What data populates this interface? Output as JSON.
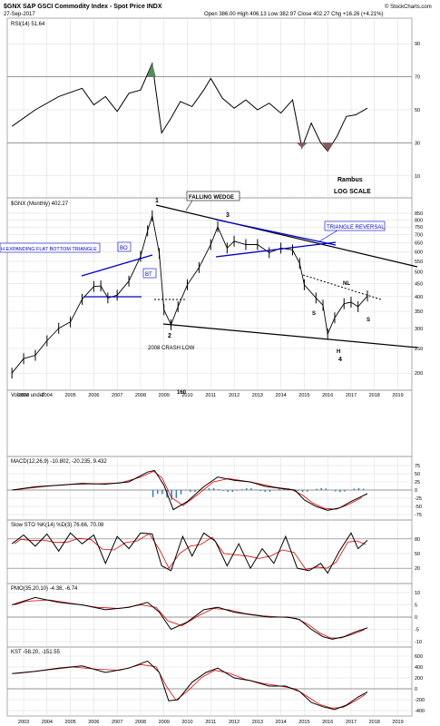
{
  "header": {
    "symbol_title": "$GNX S&P GSCI Commodity Index - Spot Price INDX",
    "date": "27-Sep-2017",
    "quote": "Open 386.00  High 406.13  Low 382.97  Close 402.27  Chg +16.26 (+4.21%)",
    "credit": "© StockCharts.com",
    "byline": "Rambus",
    "scale_note": "LOG SCALE"
  },
  "colors": {
    "price_bar": "#000000",
    "blue_line": "#0000cc",
    "rsi_fill": "#5a8a5a",
    "rsi_low_fill": "#8b5a5a",
    "signal_red": "#e00000",
    "hist_blue": "#2a7fbf",
    "grid": "#d8d8d8"
  },
  "chart_data": [
    {
      "name": "RSI",
      "type": "line",
      "legend": "RSI(14) 51.64",
      "ylim": [
        0,
        100
      ],
      "yticks": [
        10,
        30,
        50,
        70,
        90
      ],
      "x": [
        2002.5,
        2003.5,
        2004.5,
        2005.5,
        2006.0,
        2006.5,
        2007.0,
        2007.5,
        2008.0,
        2008.5,
        2008.9,
        2009.3,
        2009.7,
        2010.2,
        2010.7,
        2011.0,
        2011.5,
        2012.0,
        2012.5,
        2013.0,
        2013.5,
        2014.0,
        2014.5,
        2014.9,
        2015.3,
        2015.7,
        2016.0,
        2016.4,
        2016.8,
        2017.2,
        2017.7
      ],
      "values": [
        40,
        50,
        58,
        63,
        53,
        58,
        49,
        60,
        62,
        78,
        36,
        45,
        55,
        52,
        62,
        69,
        57,
        51,
        56,
        50,
        54,
        48,
        56,
        27,
        42,
        30,
        25,
        34,
        46,
        47,
        51
      ]
    },
    {
      "name": "Price",
      "type": "line",
      "legend": "$GNX (Monthly) 402.27",
      "scale": "log",
      "ylim": [
        180,
        900
      ],
      "yticks": [
        200,
        250,
        300,
        350,
        400,
        450,
        500,
        550,
        600,
        650,
        700,
        750,
        800,
        850
      ],
      "x": [
        2002.5,
        2003.0,
        2003.5,
        2004.0,
        2004.5,
        2005.0,
        2005.5,
        2006.0,
        2006.3,
        2006.6,
        2007.0,
        2007.5,
        2008.0,
        2008.3,
        2008.5,
        2008.8,
        2009.0,
        2009.3,
        2009.6,
        2010.0,
        2010.5,
        2011.0,
        2011.3,
        2011.7,
        2012.0,
        2012.5,
        2013.0,
        2013.5,
        2014.0,
        2014.5,
        2014.8,
        2015.0,
        2015.5,
        2015.8,
        2016.0,
        2016.3,
        2016.7,
        2017.0,
        2017.3,
        2017.7
      ],
      "values": [
        200,
        228,
        235,
        268,
        300,
        318,
        390,
        438,
        440,
        395,
        405,
        460,
        575,
        725,
        830,
        590,
        355,
        310,
        365,
        445,
        520,
        640,
        752,
        620,
        660,
        640,
        640,
        595,
        620,
        610,
        540,
        445,
        395,
        370,
        285,
        330,
        375,
        380,
        365,
        402
      ]
    },
    {
      "name": "MACD",
      "type": "line",
      "legend": "MACD(12,26,9) -10.802, -20.235, 9.432",
      "ylim": [
        -75,
        75
      ],
      "yticks": [
        -75,
        -50,
        -25,
        0,
        25,
        50,
        75
      ],
      "x": [
        2002.5,
        2003.5,
        2004.5,
        2005.5,
        2006.5,
        2007.5,
        2008.3,
        2008.6,
        2009.0,
        2009.4,
        2010.0,
        2010.7,
        2011.3,
        2012.0,
        2012.7,
        2013.3,
        2014.0,
        2014.6,
        2015.0,
        2015.5,
        2016.0,
        2016.5,
        2017.0,
        2017.7
      ],
      "values": [
        0,
        10,
        15,
        20,
        18,
        25,
        55,
        60,
        15,
        -60,
        -35,
        10,
        40,
        30,
        25,
        12,
        5,
        0,
        -30,
        -50,
        -62,
        -55,
        -35,
        -11
      ]
    },
    {
      "name": "Slow STO",
      "type": "line",
      "legend": "Slow STO %K(14) %D(3) 76.66, 70.08",
      "ylim": [
        0,
        100
      ],
      "yticks": [
        20,
        50,
        80
      ],
      "x": [
        2002.5,
        2003.0,
        2003.5,
        2004.0,
        2004.5,
        2005.0,
        2005.5,
        2006.0,
        2006.5,
        2007.0,
        2007.5,
        2008.0,
        2008.5,
        2008.9,
        2009.3,
        2009.8,
        2010.2,
        2010.7,
        2011.2,
        2011.7,
        2012.2,
        2012.7,
        2013.2,
        2013.7,
        2014.2,
        2014.7,
        2015.2,
        2015.7,
        2016.0,
        2016.5,
        2017.0,
        2017.3,
        2017.7
      ],
      "values": [
        70,
        88,
        65,
        90,
        55,
        92,
        70,
        88,
        30,
        85,
        60,
        92,
        90,
        25,
        15,
        85,
        45,
        92,
        75,
        25,
        70,
        20,
        60,
        30,
        85,
        20,
        15,
        30,
        10,
        55,
        92,
        60,
        77
      ]
    },
    {
      "name": "PMO",
      "type": "line",
      "legend": "PMO(35,20,10) -4.38, -6.74",
      "ylim": [
        -10,
        10
      ],
      "yticks": [
        -10,
        -5,
        0,
        5,
        10
      ],
      "x": [
        2002.5,
        2003.5,
        2004.5,
        2005.5,
        2006.5,
        2007.5,
        2008.3,
        2008.8,
        2009.3,
        2010.0,
        2010.7,
        2011.3,
        2012.0,
        2012.7,
        2013.5,
        2014.3,
        2014.8,
        2015.3,
        2015.8,
        2016.2,
        2016.7,
        2017.2,
        2017.7
      ],
      "values": [
        5,
        8,
        6,
        5,
        3,
        4,
        6,
        2,
        -5,
        -2,
        3,
        4,
        2,
        1,
        0,
        0,
        -1,
        -5,
        -8,
        -9,
        -8,
        -6,
        -4.4
      ]
    },
    {
      "name": "KST",
      "type": "line",
      "legend": "KST -58.20, -151.55",
      "ylim": [
        -400,
        600
      ],
      "yticks": [
        -400,
        -200,
        0,
        200,
        400,
        600
      ],
      "x": [
        2002.5,
        2003.5,
        2004.5,
        2005.5,
        2006.5,
        2007.5,
        2008.3,
        2008.8,
        2009.2,
        2009.6,
        2010.2,
        2010.8,
        2011.3,
        2012.0,
        2012.7,
        2013.5,
        2014.2,
        2014.8,
        2015.3,
        2015.8,
        2016.3,
        2016.8,
        2017.3,
        2017.7
      ],
      "values": [
        280,
        320,
        380,
        420,
        300,
        380,
        510,
        300,
        -220,
        -200,
        120,
        300,
        380,
        200,
        150,
        50,
        50,
        -50,
        -250,
        -330,
        -380,
        -300,
        -150,
        -58
      ]
    }
  ],
  "xaxis_years": [
    "2003",
    "2004",
    "2005",
    "2006",
    "2007",
    "2008",
    "2009",
    "2010",
    "2011",
    "2012",
    "2013",
    "2014",
    "2015",
    "2016",
    "2017",
    "2018",
    "2019"
  ],
  "annotations": {
    "falling_wedge": "FALLING WEDGE",
    "triangle_reversal": "TRIANGLE REVERSAL",
    "expanding_triangle": "H EXPANDING FLAT BOTTOM TRIANGLE",
    "bo": "BO",
    "bt": "BT",
    "crash_low": "2008 CRASH LOW",
    "label_1": "1",
    "label_2": "2",
    "label_3": "3",
    "label_4": "4",
    "nl": "NL",
    "s_left": "S",
    "s_right": "S",
    "h": "H",
    "volume": "Volume undef",
    "volume_value": "160"
  }
}
